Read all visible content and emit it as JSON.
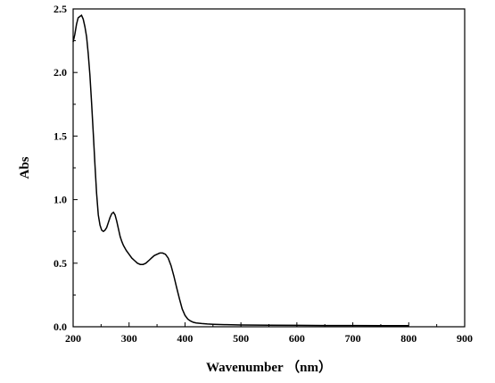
{
  "chart_data": {
    "type": "line",
    "xlabel": "Wavenumber （nm）",
    "ylabel": "Abs",
    "xlim": [
      200,
      900
    ],
    "ylim": [
      0.0,
      2.5
    ],
    "x_ticks": [
      "200",
      "300",
      "400",
      "500",
      "600",
      "700",
      "800",
      "900"
    ],
    "y_ticks": [
      "0.0",
      "0.5",
      "1.0",
      "1.5",
      "2.0",
      "2.5"
    ],
    "grid": false,
    "legend": "none",
    "line_color": "#000000",
    "series": [
      {
        "x": [
          200,
          203,
          206,
          209,
          212,
          215,
          218,
          221,
          224,
          227,
          230,
          233,
          236,
          239,
          242,
          245,
          248,
          251,
          254,
          257,
          260,
          263,
          266,
          269,
          272,
          275,
          278,
          281,
          284,
          287,
          290,
          295,
          300,
          305,
          310,
          315,
          320,
          325,
          330,
          335,
          340,
          345,
          350,
          355,
          360,
          365,
          370,
          375,
          380,
          385,
          390,
          395,
          400,
          405,
          410,
          415,
          420,
          430,
          440,
          450,
          470,
          500,
          550,
          600,
          650,
          700,
          750,
          800
        ],
        "y": [
          2.24,
          2.3,
          2.38,
          2.43,
          2.44,
          2.45,
          2.42,
          2.36,
          2.28,
          2.15,
          1.98,
          1.76,
          1.52,
          1.27,
          1.05,
          0.88,
          0.8,
          0.76,
          0.75,
          0.76,
          0.78,
          0.82,
          0.86,
          0.89,
          0.9,
          0.88,
          0.83,
          0.77,
          0.71,
          0.67,
          0.64,
          0.6,
          0.57,
          0.54,
          0.52,
          0.5,
          0.49,
          0.49,
          0.5,
          0.52,
          0.54,
          0.56,
          0.57,
          0.58,
          0.58,
          0.57,
          0.54,
          0.48,
          0.4,
          0.31,
          0.22,
          0.14,
          0.09,
          0.06,
          0.045,
          0.035,
          0.03,
          0.025,
          0.022,
          0.02,
          0.017,
          0.014,
          0.012,
          0.011,
          0.01,
          0.01,
          0.009,
          0.009
        ]
      }
    ]
  }
}
